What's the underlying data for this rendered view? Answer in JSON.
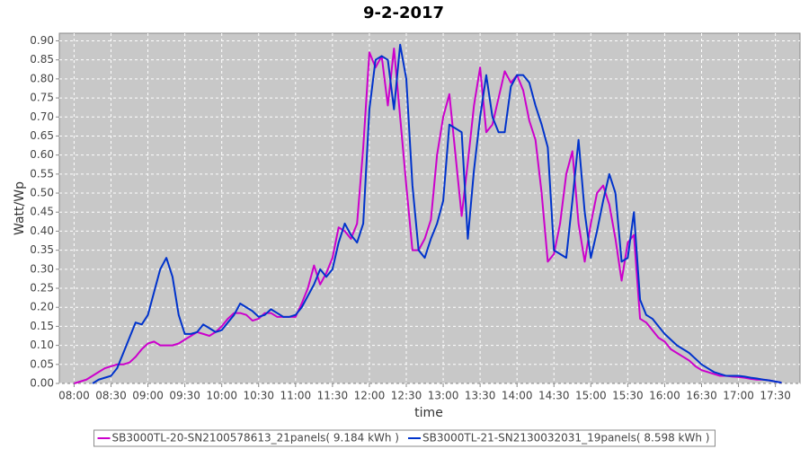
{
  "chart_data": {
    "type": "line",
    "title": "9-2-2017",
    "x_label": "time",
    "y_label": "Watt/Wp",
    "x": [
      480,
      485,
      490,
      495,
      500,
      505,
      510,
      515,
      520,
      525,
      530,
      535,
      540,
      545,
      550,
      555,
      560,
      565,
      570,
      575,
      580,
      585,
      590,
      595,
      600,
      605,
      610,
      615,
      620,
      625,
      630,
      635,
      640,
      645,
      650,
      655,
      660,
      665,
      670,
      675,
      680,
      685,
      690,
      695,
      700,
      705,
      710,
      715,
      720,
      725,
      730,
      735,
      740,
      745,
      750,
      755,
      760,
      765,
      770,
      775,
      780,
      785,
      790,
      795,
      800,
      805,
      810,
      815,
      820,
      825,
      830,
      835,
      840,
      845,
      850,
      855,
      860,
      865,
      870,
      875,
      880,
      885,
      890,
      895,
      900,
      905,
      910,
      915,
      920,
      925,
      930,
      935,
      940,
      945,
      950,
      955,
      960,
      965,
      970,
      975,
      980,
      985,
      990,
      995,
      1000,
      1005,
      1010,
      1015,
      1020,
      1025,
      1030,
      1035,
      1040,
      1045,
      1050,
      1055
    ],
    "series": [
      {
        "name": "SB3000TL-20-SN2100578613_21panels( 9.184 kWh )",
        "color": "#cc00cc",
        "values": [
          0,
          0.005,
          0.01,
          0.02,
          0.03,
          0.04,
          0.045,
          0.05,
          0.05,
          0.055,
          0.07,
          0.09,
          0.105,
          0.11,
          0.1,
          0.1,
          0.1,
          0.105,
          0.115,
          0.125,
          0.135,
          0.13,
          0.125,
          0.135,
          0.15,
          0.17,
          0.185,
          0.185,
          0.18,
          0.165,
          0.17,
          0.185,
          0.185,
          0.175,
          0.175,
          0.175,
          0.175,
          0.21,
          0.25,
          0.31,
          0.26,
          0.29,
          0.33,
          0.41,
          0.4,
          0.38,
          0.42,
          0.62,
          0.87,
          0.83,
          0.86,
          0.73,
          0.88,
          0.7,
          0.52,
          0.35,
          0.35,
          0.38,
          0.43,
          0.6,
          0.7,
          0.76,
          0.6,
          0.44,
          0.58,
          0.73,
          0.83,
          0.66,
          0.68,
          0.75,
          0.82,
          0.79,
          0.81,
          0.77,
          0.69,
          0.64,
          0.5,
          0.32,
          0.34,
          0.42,
          0.55,
          0.61,
          0.42,
          0.32,
          0.42,
          0.5,
          0.52,
          0.47,
          0.38,
          0.27,
          0.37,
          0.39,
          0.17,
          0.16,
          0.14,
          0.12,
          0.11,
          0.09,
          0.08,
          0.07,
          0.06,
          0.045,
          0.035,
          0.03,
          0.025,
          0.02,
          0.02,
          0.018,
          0.017,
          0.015,
          0.012,
          0.01,
          0.01,
          0.008,
          0.005,
          0.002
        ]
      },
      {
        "name": "SB3000TL-21-SN2130032031_19panels( 8.598 kWh )",
        "color": "#0033cc",
        "values": [
          null,
          null,
          null,
          0,
          0.01,
          0.015,
          0.02,
          0.04,
          0.08,
          0.12,
          0.16,
          0.155,
          0.18,
          0.24,
          0.3,
          0.33,
          0.28,
          0.18,
          0.13,
          0.13,
          0.135,
          0.155,
          0.145,
          0.135,
          0.14,
          0.16,
          0.18,
          0.21,
          0.2,
          0.19,
          0.175,
          0.18,
          0.195,
          0.185,
          0.175,
          0.175,
          0.18,
          0.2,
          0.23,
          0.26,
          0.3,
          0.28,
          0.3,
          0.37,
          0.42,
          0.39,
          0.37,
          0.42,
          0.72,
          0.85,
          0.86,
          0.85,
          0.72,
          0.89,
          0.8,
          0.52,
          0.35,
          0.33,
          0.38,
          0.42,
          0.48,
          0.68,
          0.67,
          0.66,
          0.38,
          0.56,
          0.7,
          0.81,
          0.7,
          0.66,
          0.66,
          0.78,
          0.81,
          0.81,
          0.79,
          0.73,
          0.68,
          0.62,
          0.35,
          0.34,
          0.33,
          0.48,
          0.64,
          0.45,
          0.33,
          0.4,
          0.48,
          0.55,
          0.5,
          0.32,
          0.33,
          0.45,
          0.22,
          0.18,
          0.17,
          0.15,
          0.13,
          0.115,
          0.1,
          0.09,
          0.08,
          0.065,
          0.05,
          0.04,
          0.03,
          0.025,
          0.02,
          0.02,
          0.02,
          0.018,
          0.015,
          0.013,
          0.01,
          0.008,
          0.005,
          0.002
        ]
      }
    ],
    "xlim": [
      468,
      1070
    ],
    "ylim": [
      0,
      0.92
    ],
    "xticks": [
      {
        "value": 480,
        "label": "08:00"
      },
      {
        "value": 510,
        "label": "08:30"
      },
      {
        "value": 540,
        "label": "09:00"
      },
      {
        "value": 570,
        "label": "09:30"
      },
      {
        "value": 600,
        "label": "10:00"
      },
      {
        "value": 630,
        "label": "10:30"
      },
      {
        "value": 660,
        "label": "11:00"
      },
      {
        "value": 690,
        "label": "11:30"
      },
      {
        "value": 720,
        "label": "12:00"
      },
      {
        "value": 750,
        "label": "12:30"
      },
      {
        "value": 780,
        "label": "13:00"
      },
      {
        "value": 810,
        "label": "13:30"
      },
      {
        "value": 840,
        "label": "14:00"
      },
      {
        "value": 870,
        "label": "14:30"
      },
      {
        "value": 900,
        "label": "15:00"
      },
      {
        "value": 930,
        "label": "15:30"
      },
      {
        "value": 960,
        "label": "16:00"
      },
      {
        "value": 990,
        "label": "16:30"
      },
      {
        "value": 1020,
        "label": "17:00"
      },
      {
        "value": 1050,
        "label": "17:30"
      }
    ],
    "yticks": [
      {
        "value": 0,
        "label": "0.00"
      },
      {
        "value": 0.05,
        "label": "0.05"
      },
      {
        "value": 0.1,
        "label": "0.10"
      },
      {
        "value": 0.15,
        "label": "0.15"
      },
      {
        "value": 0.2,
        "label": "0.20"
      },
      {
        "value": 0.25,
        "label": "0.25"
      },
      {
        "value": 0.3,
        "label": "0.30"
      },
      {
        "value": 0.35,
        "label": "0.35"
      },
      {
        "value": 0.4,
        "label": "0.40"
      },
      {
        "value": 0.45,
        "label": "0.45"
      },
      {
        "value": 0.5,
        "label": "0.50"
      },
      {
        "value": 0.55,
        "label": "0.55"
      },
      {
        "value": 0.6,
        "label": "0.60"
      },
      {
        "value": 0.65,
        "label": "0.65"
      },
      {
        "value": 0.7,
        "label": "0.70"
      },
      {
        "value": 0.75,
        "label": "0.75"
      },
      {
        "value": 0.8,
        "label": "0.80"
      },
      {
        "value": 0.85,
        "label": "0.85"
      },
      {
        "value": 0.9,
        "label": "0.90"
      }
    ],
    "grid": true,
    "legend": "bottom"
  }
}
